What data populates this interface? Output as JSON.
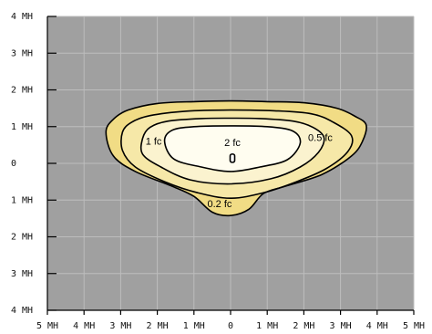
{
  "chart_data": {
    "type": "contour",
    "title": "",
    "xlabel": "",
    "ylabel": "",
    "x_unit": "MH",
    "y_unit": "MH",
    "xlim": [
      -5,
      5
    ],
    "ylim": [
      -4,
      4
    ],
    "grid": true,
    "x_ticks": [
      {
        "value": -5,
        "label": "5 MH"
      },
      {
        "value": -4,
        "label": "4 MH"
      },
      {
        "value": -3,
        "label": "3 MH"
      },
      {
        "value": -2,
        "label": "2 MH"
      },
      {
        "value": -1,
        "label": "1 MH"
      },
      {
        "value": 0,
        "label": "0"
      },
      {
        "value": 1,
        "label": "1 MH"
      },
      {
        "value": 2,
        "label": "2 MH"
      },
      {
        "value": 3,
        "label": "3 MH"
      },
      {
        "value": 4,
        "label": "4 MH"
      },
      {
        "value": 5,
        "label": "5 MH"
      }
    ],
    "y_ticks": [
      {
        "value": 4,
        "label": "4 MH"
      },
      {
        "value": 3,
        "label": "3 MH"
      },
      {
        "value": 2,
        "label": "2 MH"
      },
      {
        "value": 1,
        "label": "1 MH"
      },
      {
        "value": 0,
        "label": "0"
      },
      {
        "value": -1,
        "label": "1 MH"
      },
      {
        "value": -2,
        "label": "2 MH"
      },
      {
        "value": -3,
        "label": "3 MH"
      },
      {
        "value": -4,
        "label": "4 MH"
      }
    ],
    "colors": {
      "background": "#a0a0a0",
      "fill_0_2": "#f1dc85",
      "fill_0_5": "#f6e8a8",
      "fill_1": "#fbf3cf",
      "fill_2": "#fffdf0",
      "contour_line": "#000000"
    },
    "contours": [
      {
        "label": "0.2 fc",
        "level": 0.2,
        "label_at": [
          -0.3,
          -1.12
        ],
        "points": [
          [
            -3.4,
            0.85
          ],
          [
            -3.2,
            1.2
          ],
          [
            -2.8,
            1.45
          ],
          [
            -2.0,
            1.63
          ],
          [
            -1.0,
            1.68
          ],
          [
            0,
            1.7
          ],
          [
            1.0,
            1.68
          ],
          [
            2.0,
            1.65
          ],
          [
            2.9,
            1.5
          ],
          [
            3.4,
            1.28
          ],
          [
            3.7,
            1.05
          ],
          [
            3.6,
            0.6
          ],
          [
            3.3,
            0.2
          ],
          [
            2.5,
            -0.3
          ],
          [
            1.5,
            -0.62
          ],
          [
            0.9,
            -0.82
          ],
          [
            0.5,
            -1.25
          ],
          [
            0,
            -1.42
          ],
          [
            -0.5,
            -1.33
          ],
          [
            -1.0,
            -0.9
          ],
          [
            -1.6,
            -0.62
          ],
          [
            -2.6,
            -0.22
          ],
          [
            -3.2,
            0.2
          ]
        ]
      },
      {
        "label": "0.5 fc",
        "level": 0.5,
        "label_at": [
          2.45,
          0.68
        ],
        "points": [
          [
            -2.95,
            0.85
          ],
          [
            -2.7,
            1.12
          ],
          [
            -2.2,
            1.3
          ],
          [
            -1.2,
            1.42
          ],
          [
            0,
            1.45
          ],
          [
            1.2,
            1.43
          ],
          [
            2.2,
            1.35
          ],
          [
            2.8,
            1.12
          ],
          [
            3.3,
            0.75
          ],
          [
            3.2,
            0.32
          ],
          [
            2.6,
            -0.15
          ],
          [
            1.8,
            -0.5
          ],
          [
            0.9,
            -0.8
          ],
          [
            0,
            -0.95
          ],
          [
            -0.9,
            -0.8
          ],
          [
            -1.8,
            -0.5
          ],
          [
            -2.6,
            -0.1
          ],
          [
            -2.95,
            0.35
          ]
        ]
      },
      {
        "label": "1 fc",
        "level": 1,
        "label_at": [
          -2.1,
          0.58
        ],
        "points": [
          [
            -2.4,
            0.68
          ],
          [
            -2.2,
            0.98
          ],
          [
            -1.7,
            1.15
          ],
          [
            -0.8,
            1.22
          ],
          [
            0,
            1.23
          ],
          [
            0.8,
            1.22
          ],
          [
            1.7,
            1.15
          ],
          [
            2.25,
            0.98
          ],
          [
            2.55,
            0.7
          ],
          [
            2.4,
            0.3
          ],
          [
            1.9,
            -0.1
          ],
          [
            1.1,
            -0.42
          ],
          [
            0,
            -0.56
          ],
          [
            -1.1,
            -0.45
          ],
          [
            -1.9,
            -0.1
          ],
          [
            -2.4,
            0.25
          ]
        ]
      },
      {
        "label": "2 fc",
        "level": 2,
        "label_at": [
          0.05,
          0.55
        ],
        "points": [
          [
            -1.8,
            0.6
          ],
          [
            -1.6,
            0.9
          ],
          [
            -1.0,
            1.0
          ],
          [
            0,
            1.02
          ],
          [
            1.0,
            1.0
          ],
          [
            1.7,
            0.88
          ],
          [
            1.9,
            0.55
          ],
          [
            1.55,
            0.1
          ],
          [
            0.8,
            -0.1
          ],
          [
            0,
            -0.22
          ],
          [
            -0.8,
            -0.1
          ],
          [
            -1.55,
            0.12
          ]
        ]
      }
    ],
    "peak_marker": {
      "x": 0.05,
      "y": 0.14
    }
  }
}
